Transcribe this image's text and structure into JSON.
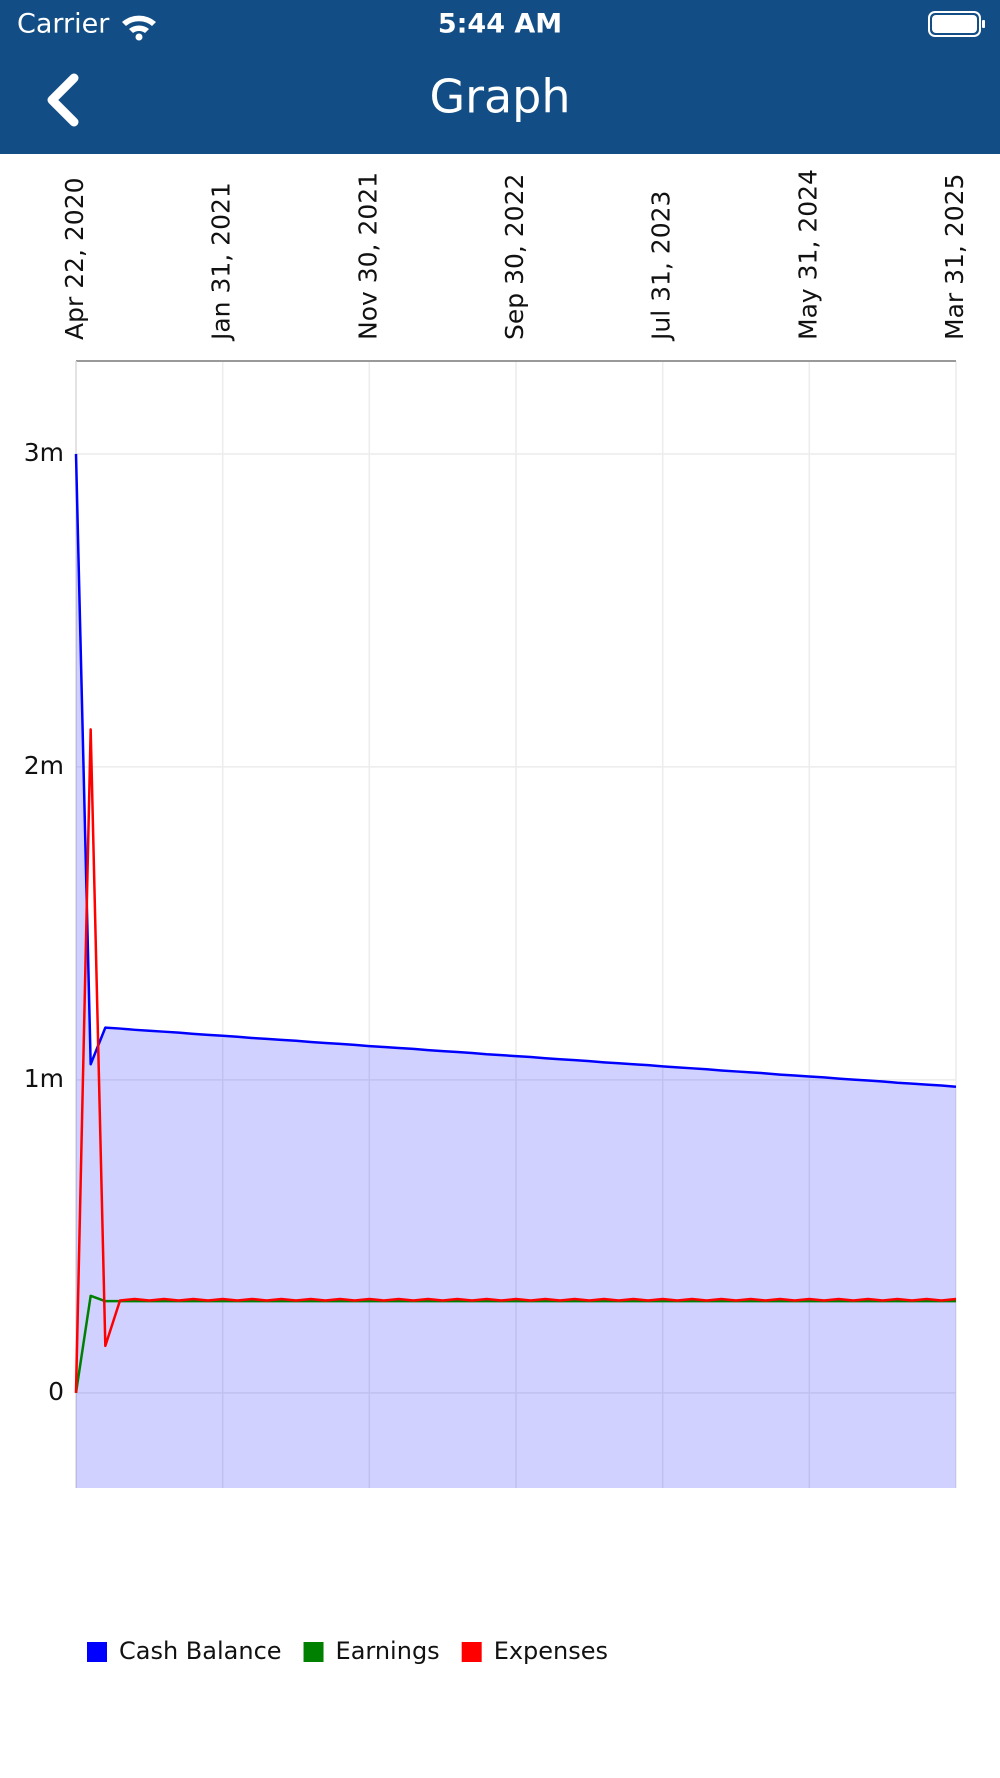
{
  "status_bar": {
    "carrier": "Carrier",
    "time": "5:44 AM"
  },
  "header": {
    "title": "Graph"
  },
  "chart_data": {
    "type": "line",
    "categories": [
      "Apr 22, 2020",
      null,
      null,
      null,
      null,
      null,
      null,
      null,
      null,
      null,
      "Jan 31, 2021",
      null,
      null,
      null,
      null,
      null,
      null,
      null,
      null,
      null,
      "Nov 30, 2021",
      null,
      null,
      null,
      null,
      null,
      null,
      null,
      null,
      null,
      "Sep 30, 2022",
      null,
      null,
      null,
      null,
      null,
      null,
      null,
      null,
      null,
      "Jul 31, 2023",
      null,
      null,
      null,
      null,
      null,
      null,
      null,
      null,
      null,
      "May 31, 2024",
      null,
      null,
      null,
      null,
      null,
      null,
      null,
      null,
      null,
      "Mar 31, 2025"
    ],
    "series": [
      {
        "name": "Cash Balance",
        "color": "#0000ff",
        "area": true,
        "values": [
          3000000,
          1050000,
          1167000,
          1164000,
          1160000,
          1157000,
          1154000,
          1151000,
          1147000,
          1144000,
          1141000,
          1138000,
          1134000,
          1131000,
          1128000,
          1125000,
          1121000,
          1118000,
          1115000,
          1112000,
          1108000,
          1105000,
          1102000,
          1099000,
          1095000,
          1092000,
          1089000,
          1086000,
          1082000,
          1079000,
          1076000,
          1073000,
          1069000,
          1066000,
          1063000,
          1060000,
          1056000,
          1053000,
          1050000,
          1047000,
          1043000,
          1040000,
          1037000,
          1034000,
          1030000,
          1027000,
          1024000,
          1021000,
          1017000,
          1014000,
          1011000,
          1008000,
          1004000,
          1001000,
          998000,
          995000,
          991000,
          988000,
          985000,
          982000,
          978000
        ]
      },
      {
        "name": "Earnings",
        "color": "#008000",
        "values": [
          0,
          310000,
          293000,
          293000,
          293000,
          293000,
          293000,
          293000,
          293000,
          293000,
          293000,
          293000,
          293000,
          293000,
          293000,
          293000,
          293000,
          293000,
          293000,
          293000,
          293000,
          293000,
          293000,
          293000,
          293000,
          293000,
          293000,
          293000,
          293000,
          293000,
          293000,
          293000,
          293000,
          293000,
          293000,
          293000,
          293000,
          293000,
          293000,
          293000,
          293000,
          293000,
          293000,
          293000,
          293000,
          293000,
          293000,
          293000,
          293000,
          293000,
          293000,
          293000,
          293000,
          293000,
          293000,
          293000,
          293000,
          293000,
          293000,
          293000,
          293000
        ]
      },
      {
        "name": "Expenses",
        "color": "#ff0000",
        "values": [
          0,
          2120000,
          150000,
          295000,
          300000,
          295000,
          300000,
          295000,
          300000,
          295000,
          300000,
          295000,
          300000,
          295000,
          300000,
          295000,
          300000,
          295000,
          300000,
          295000,
          300000,
          295000,
          300000,
          295000,
          300000,
          295000,
          300000,
          295000,
          300000,
          295000,
          300000,
          295000,
          300000,
          295000,
          300000,
          295000,
          300000,
          295000,
          300000,
          295000,
          300000,
          295000,
          300000,
          295000,
          300000,
          295000,
          300000,
          295000,
          300000,
          295000,
          300000,
          295000,
          300000,
          295000,
          300000,
          295000,
          300000,
          295000,
          300000,
          295000,
          300000
        ]
      }
    ],
    "ylim": [
      -304000,
      3297000
    ],
    "yticks": [
      0,
      {
        "value": 1000000,
        "label": "1m"
      },
      {
        "value": 2000000,
        "label": "2m"
      },
      {
        "value": 3000000,
        "label": "3m"
      }
    ],
    "grid": true,
    "legend": "bottom-left"
  }
}
